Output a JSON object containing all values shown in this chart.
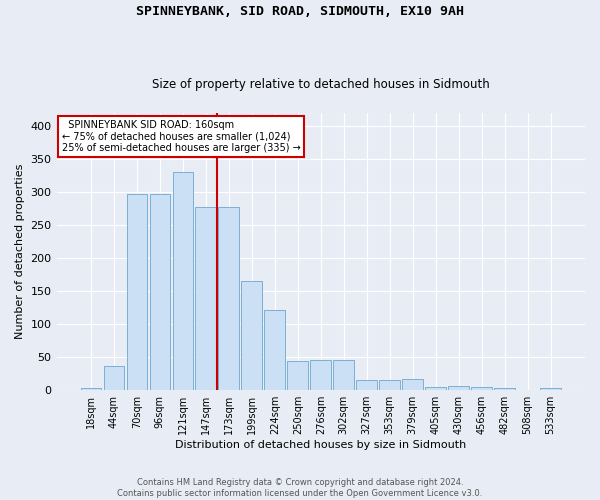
{
  "title": "SPINNEYBANK, SID ROAD, SIDMOUTH, EX10 9AH",
  "subtitle": "Size of property relative to detached houses in Sidmouth",
  "xlabel": "Distribution of detached houses by size in Sidmouth",
  "ylabel": "Number of detached properties",
  "bar_labels": [
    "18sqm",
    "44sqm",
    "70sqm",
    "96sqm",
    "121sqm",
    "147sqm",
    "173sqm",
    "199sqm",
    "224sqm",
    "250sqm",
    "276sqm",
    "302sqm",
    "327sqm",
    "353sqm",
    "379sqm",
    "405sqm",
    "430sqm",
    "456sqm",
    "482sqm",
    "508sqm",
    "533sqm"
  ],
  "bar_values": [
    4,
    37,
    298,
    298,
    330,
    278,
    278,
    165,
    122,
    44,
    46,
    46,
    16,
    16,
    17,
    5,
    6,
    5,
    4,
    1,
    4
  ],
  "bar_color": "#cce0f5",
  "bar_edge_color": "#7bafd4",
  "annotation_text": "  SPINNEYBANK SID ROAD: 160sqm\n← 75% of detached houses are smaller (1,024)\n25% of semi-detached houses are larger (335) →",
  "red_line_color": "#cc0000",
  "annotation_box_edge_color": "#cc0000",
  "background_color": "#e8edf5",
  "grid_color": "#ffffff",
  "footer_text": "Contains HM Land Registry data © Crown copyright and database right 2024.\nContains public sector information licensed under the Open Government Licence v3.0.",
  "ylim": [
    0,
    420
  ],
  "yticks": [
    0,
    50,
    100,
    150,
    200,
    250,
    300,
    350,
    400
  ]
}
